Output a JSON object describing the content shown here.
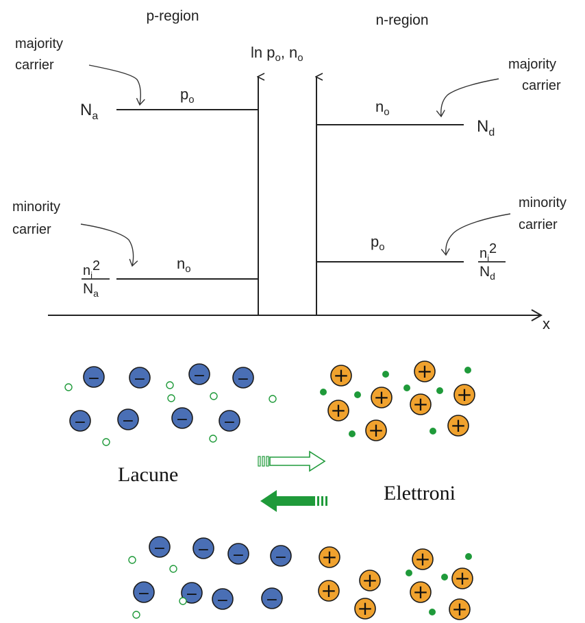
{
  "colors": {
    "acceptor_ion": "#4a6fb5",
    "donor_ion": "#f0a22e",
    "carrier_green": "#1f9a3a",
    "line": "#222222"
  },
  "plot": {
    "p_region_label": "p-region",
    "n_region_label": "n-region",
    "y_axis_label": {
      "main": "ln p",
      "sub1": "o",
      "mid": ", n",
      "sub2": "o"
    },
    "x_axis_label": "x",
    "p_side": {
      "majority_label": [
        "majority",
        "carrier"
      ],
      "minority_label": [
        "minority",
        "carrier"
      ],
      "majority_level": {
        "main": "N",
        "sub": "a"
      },
      "minority_level": {
        "num_main": "n",
        "num_sub": "i",
        "num_exp": "2",
        "den_main": "N",
        "den_sub": "a"
      },
      "majority_line_label": {
        "main": "p",
        "sub": "o"
      },
      "minority_line_label": {
        "main": "n",
        "sub": "o"
      }
    },
    "n_side": {
      "majority_label": [
        "majority",
        "carrier"
      ],
      "minority_label": [
        "minority",
        "carrier"
      ],
      "majority_level": {
        "main": "N",
        "sub": "d"
      },
      "minority_level": {
        "num_main": "n",
        "num_sub": "i",
        "num_exp": "2",
        "den_main": "N",
        "den_sub": "d"
      },
      "majority_line_label": {
        "main": "n",
        "sub": "o"
      },
      "minority_line_label": {
        "main": "p",
        "sub": "o"
      }
    }
  },
  "illustration": {
    "holes_label": "Lacune",
    "electrons_label": "Elettroni",
    "acceptor_symbol": "−",
    "donor_symbol": "+"
  }
}
